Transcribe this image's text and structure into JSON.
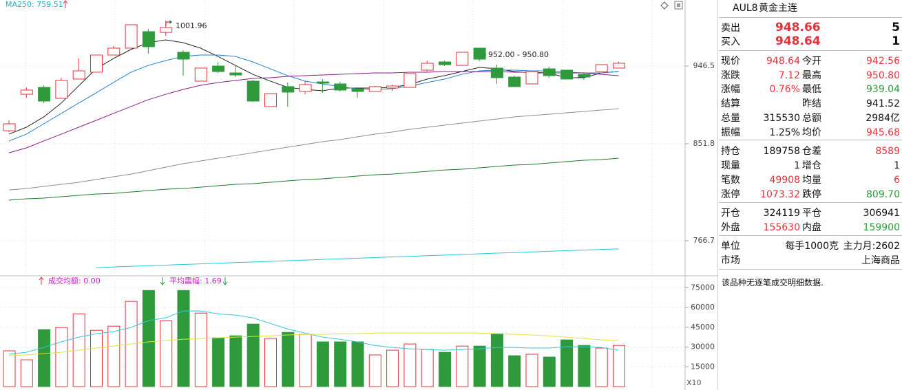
{
  "kline": {
    "type": "candlestick",
    "legend": "MA250: 759.51",
    "up_color": "#e8303a",
    "down_color": "#2f9a3c",
    "yticks": [
      946.5,
      851.8,
      766.7
    ],
    "open": [
      867.7,
      912.1,
      920.5,
      907.1,
      930.6,
      939.0,
      959.9,
      968.3,
      988.4,
      987.5,
      963.3,
      928.1,
      946.5,
      938.1,
      928.1,
      897.1,
      921.4,
      915.5,
      927.2,
      924.7,
      918.8,
      915.5,
      919.7,
      920.5,
      941.5,
      951.5,
      947.3,
      968.3,
      944.0,
      933.1,
      924.7,
      943.1,
      941.5,
      936.4,
      939.8,
      944.0
    ],
    "high": [
      880.3,
      920.5,
      923.0,
      932.3,
      955.7,
      959.9,
      970.8,
      996.8,
      991.8,
      1001.96,
      965.8,
      944.0,
      951.5,
      946.5,
      929.7,
      913.0,
      926.4,
      928.1,
      930.6,
      927.2,
      920.5,
      922.2,
      923.9,
      937.3,
      953.2,
      953.2,
      963.3,
      968.3,
      948.2,
      934.8,
      939.8,
      945.7,
      941.5,
      939.0,
      948.2,
      951.5
    ],
    "low": [
      866.0,
      908.0,
      901.2,
      907.1,
      930.6,
      939.0,
      959.9,
      968.3,
      961.6,
      983.4,
      934.8,
      928.1,
      938.1,
      933.1,
      902.9,
      897.1,
      897.1,
      912.1,
      913.8,
      915.5,
      908.0,
      915.5,
      916.3,
      920.5,
      939.8,
      946.5,
      947.3,
      952.3,
      924.7,
      921.4,
      924.7,
      932.3,
      930.6,
      929.7,
      939.8,
      944.0
    ],
    "close": [
      876.1,
      917.2,
      903.8,
      928.9,
      940.6,
      959.9,
      968.3,
      996.8,
      970.0,
      993.4,
      954.9,
      944.0,
      939.8,
      935.6,
      903.8,
      913.0,
      914.7,
      923.9,
      925.6,
      917.2,
      915.5,
      921.4,
      922.2,
      937.3,
      949.9,
      948.2,
      963.3,
      954.9,
      932.3,
      921.4,
      939.8,
      934.8,
      930.6,
      933.1,
      948.2,
      949.9
    ],
    "annotations": [
      "1001.96",
      "952.00 - 950.80"
    ],
    "ma_lines": [
      {
        "color": "#222222",
        "values": [
          863.5,
          871.9,
          884.5,
          901.3,
          922.2,
          943.1,
          955.7,
          966.6,
          975.0,
          978.3,
          975.0,
          968.3,
          958.2,
          947.3,
          936.4,
          928.1,
          920.5,
          918.0,
          916.3,
          919.7,
          919.7,
          919.7,
          920.5,
          923.9,
          930.6,
          934.8,
          939.8,
          944.8,
          943.1,
          939.8,
          938.1,
          938.1,
          932.3,
          932.3,
          938.1,
          939.8
        ]
      },
      {
        "color": "#1f7fd0",
        "values": [
          855.2,
          863.5,
          876.1,
          888.7,
          901.3,
          913.8,
          926.4,
          939.0,
          947.3,
          953.2,
          958.2,
          959.9,
          959.9,
          958.2,
          951.5,
          943.1,
          934.8,
          928.1,
          924.7,
          921.4,
          918.8,
          918.0,
          918.8,
          922.2,
          926.4,
          930.6,
          936.4,
          940.6,
          941.5,
          941.5,
          940.6,
          940.6,
          939.0,
          938.1,
          938.1,
          939.8
        ]
      },
      {
        "color": "#8a1a8a",
        "values": [
          843.9,
          848.2,
          855.2,
          863.5,
          871.9,
          880.3,
          888.7,
          897.1,
          905.5,
          912.1,
          918.0,
          923.0,
          926.4,
          928.9,
          931.4,
          932.3,
          933.9,
          934.8,
          935.6,
          936.4,
          937.3,
          938.1,
          938.1,
          939.0,
          939.0,
          939.8,
          939.8,
          939.8,
          939.8,
          939.0,
          939.0,
          938.1,
          938.1,
          938.1,
          936.4,
          934.8
        ]
      },
      {
        "color": "#8c8c8c",
        "values": [
          811.3,
          812.5,
          814.4,
          816.2,
          818.0,
          820.4,
          822.8,
          825.2,
          828.2,
          831.3,
          834.3,
          836.7,
          839.1,
          841.5,
          843.9,
          846.4,
          848.8,
          851.2,
          854.3,
          856.8,
          860.2,
          863.5,
          866.0,
          869.4,
          871.9,
          874.4,
          876.9,
          879.5,
          882.0,
          884.5,
          886.2,
          887.8,
          889.5,
          891.2,
          892.9,
          894.5
        ]
      },
      {
        "color": "#1e7a2a",
        "values": [
          802.3,
          803.5,
          804.1,
          805.3,
          806.5,
          807.7,
          808.3,
          809.5,
          810.7,
          811.9,
          812.5,
          813.7,
          815.0,
          816.2,
          816.8,
          818.0,
          819.2,
          820.4,
          821.0,
          822.2,
          823.4,
          824.6,
          825.2,
          826.4,
          827.6,
          828.8,
          829.5,
          830.7,
          831.9,
          833.1,
          833.7,
          834.9,
          836.1,
          837.3,
          837.9,
          839.1
        ]
      },
      {
        "color": "#22c8d8",
        "values": [
          null,
          null,
          null,
          null,
          null,
          743.1,
          743.7,
          744.2,
          744.8,
          745.3,
          745.9,
          746.4,
          747.0,
          747.5,
          748.1,
          748.6,
          749.2,
          749.7,
          750.3,
          750.8,
          751.4,
          751.9,
          752.5,
          753.0,
          753.6,
          754.1,
          754.7,
          755.2,
          755.8,
          756.3,
          756.9,
          757.4,
          758.0,
          758.5,
          759.1,
          759.5
        ]
      }
    ]
  },
  "volume": {
    "type": "bar",
    "ylim": [
      0,
      84000
    ],
    "yticks": [
      75000,
      60000,
      45000,
      30000,
      15000
    ],
    "multiplier_label": "X10",
    "indicators": [
      "成交均额: 0.00",
      "平均震幅: 1.69"
    ],
    "values": [
      27100,
      20300,
      43200,
      44800,
      55200,
      42700,
      45800,
      64600,
      72900,
      50000,
      72900,
      55700,
      37000,
      38500,
      47400,
      36500,
      41100,
      39600,
      33900,
      33900,
      33900,
      24000,
      27600,
      32300,
      28100,
      26000,
      30700,
      30700,
      40100,
      23400,
      24500,
      22400,
      35400,
      31200,
      29200,
      31200
    ],
    "lines": [
      {
        "color": "#30c8d8",
        "values": [
          24500,
          26000,
          29700,
          33900,
          37500,
          40100,
          41700,
          44800,
          50000,
          52100,
          57300,
          57300,
          55200,
          54200,
          52100,
          47900,
          43700,
          40600,
          37500,
          35900,
          33900,
          31200,
          29700,
          28600,
          28100,
          27600,
          28100,
          28600,
          29700,
          29700,
          29200,
          29200,
          30200,
          30200,
          29700,
          27600
        ]
      },
      {
        "color": "#e6e040",
        "values": [
          23400,
          24000,
          25000,
          26000,
          27600,
          29200,
          30700,
          32300,
          33900,
          34900,
          35900,
          36500,
          37000,
          37500,
          38000,
          38500,
          39100,
          39600,
          39600,
          40100,
          40100,
          40600,
          40600,
          40600,
          40600,
          40600,
          40600,
          40600,
          40100,
          39600,
          39100,
          38500,
          37500,
          36500,
          35400,
          34900
        ]
      }
    ]
  },
  "quote": {
    "symbol": "AUL8",
    "name": "黄金主连",
    "ask": [
      "卖出",
      "948.66",
      "5"
    ],
    "bid": [
      "买入",
      "948.64",
      "1"
    ],
    "rows": [
      [
        "现价",
        "948.64",
        "今开",
        "942.56"
      ],
      [
        "涨跌",
        "7.12",
        "最高",
        "950.80"
      ],
      [
        "涨幅",
        "0.76%",
        "最低",
        "939.04"
      ],
      [
        "结算",
        null,
        "昨结",
        "941.52"
      ],
      [
        "总量",
        "315530",
        "总额",
        "2984亿"
      ],
      [
        "振幅",
        "1.25%",
        "均价",
        "945.68"
      ],
      [
        "持仓",
        "189758",
        "仓差",
        "8589"
      ],
      [
        "现量",
        "1",
        "增仓",
        "1"
      ],
      [
        "笔数",
        "49908",
        "均量",
        "6"
      ],
      [
        "涨停",
        "1073.32",
        "跌停",
        "809.70"
      ],
      [
        "开仓",
        "324119",
        "平仓",
        "306941"
      ],
      [
        "外盘",
        "155630",
        "内盘",
        "159900"
      ]
    ],
    "unit": [
      "单位",
      "每手1000克",
      "主力月:2602"
    ],
    "market": [
      "市场",
      "上海商品"
    ],
    "message": "该品种无逐笔成交明细数据."
  }
}
